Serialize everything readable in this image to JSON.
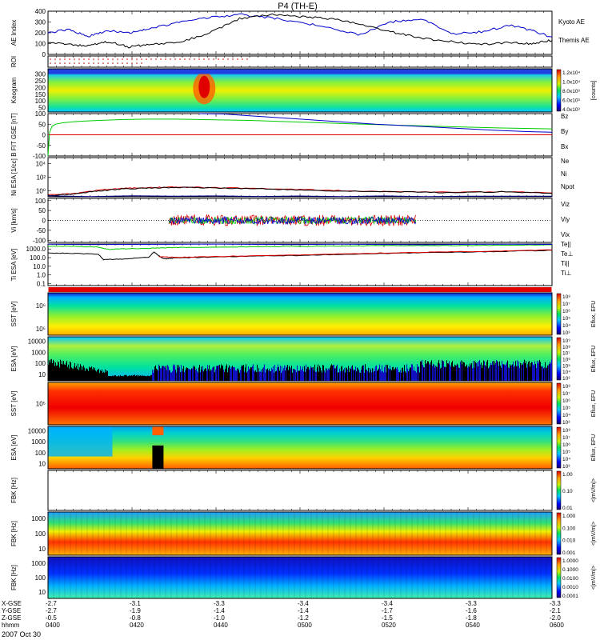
{
  "title": "P4 (TH-E)",
  "date_label": "2007 Oct 30",
  "colors": {
    "kyoto": "#0000cc",
    "themis": "#000000",
    "bz": "#dd0000",
    "by": "#00cc00",
    "bx": "#0000cc",
    "ne": "#dd0000",
    "ni": "#000000",
    "npot": "#000088",
    "telli": "#000000",
    "teperp": "#dd0000",
    "tipar": "#00cc00",
    "tiperp": "#0000cc"
  },
  "chart_data": [
    {
      "type": "line",
      "id": "ae",
      "ylabel": "AE Index",
      "yticks": [
        "0",
        "100",
        "200",
        "300",
        "400"
      ],
      "ylim": [
        0,
        400
      ],
      "series": [
        {
          "name": "Kyoto AE",
          "color_key": "kyoto",
          "x": [
            0,
            4,
            8,
            12,
            16,
            20,
            26,
            32,
            38,
            44,
            50,
            56,
            62,
            68,
            74,
            80,
            86,
            92,
            96,
            100
          ],
          "values": [
            200,
            230,
            165,
            220,
            200,
            240,
            295,
            340,
            370,
            340,
            300,
            240,
            180,
            300,
            330,
            190,
            210,
            270,
            220,
            160
          ]
        },
        {
          "name": "Themis AE",
          "color_key": "themis",
          "x": [
            0,
            4,
            8,
            12,
            16,
            20,
            26,
            32,
            38,
            44,
            50,
            56,
            62,
            68,
            74,
            80,
            86,
            92,
            96,
            100
          ],
          "values": [
            110,
            90,
            80,
            120,
            70,
            90,
            110,
            200,
            330,
            370,
            350,
            330,
            280,
            210,
            150,
            120,
            90,
            110,
            100,
            130
          ]
        }
      ]
    },
    {
      "type": "scatter",
      "id": "roi",
      "ylabel": "ROI"
    },
    {
      "type": "heatmap",
      "id": "keogram",
      "ylabel": "Keogram",
      "yticks": [
        "50",
        "100",
        "150",
        "200",
        "250",
        "300"
      ],
      "ylim": [
        25,
        300
      ],
      "colorbar_label": "[counts]",
      "colorbar_ticks": [
        "1.2x10⁴",
        "1.0x10⁴",
        "8.0x10³",
        "6.0x10³",
        "4.0x10³"
      ]
    },
    {
      "type": "line",
      "id": "bfield",
      "ylabel": "B FIT GSE [nT]",
      "yticks": [
        "-100",
        "-50",
        "0",
        "50",
        "100"
      ],
      "ylim": [
        -100,
        100
      ],
      "series": [
        {
          "name": "Bz",
          "color_key": "bz",
          "x": [
            0,
            100
          ],
          "values": [
            0,
            0
          ]
        },
        {
          "name": "By",
          "color_key": "by",
          "x": [
            0,
            0.3,
            0.8,
            1.5,
            3,
            6,
            10,
            15,
            20,
            25,
            30,
            40,
            50,
            60,
            70,
            80,
            90,
            100
          ],
          "values": [
            -100,
            10,
            40,
            50,
            57,
            63,
            68,
            72,
            74,
            74,
            72,
            68,
            60,
            52,
            45,
            38,
            32,
            28
          ]
        },
        {
          "name": "Bx",
          "color_key": "bx",
          "x": [
            30,
            35,
            40,
            45,
            50,
            55,
            60,
            65,
            70,
            75,
            80,
            85,
            90,
            95,
            100
          ],
          "values": [
            100,
            98,
            90,
            82,
            74,
            66,
            58,
            50,
            44,
            38,
            32,
            26,
            20,
            15,
            12
          ]
        }
      ]
    },
    {
      "type": "line",
      "id": "density",
      "ylabel": "Ni ESA [1/cc]",
      "yticks": [
        "10⁴",
        "10²",
        "10⁰"
      ],
      "ylim": [
        -1,
        5
      ],
      "series": [
        {
          "name": "Ne",
          "color_key": "ne",
          "x": [
            0,
            5,
            10,
            15,
            20,
            25,
            30,
            40,
            50,
            60,
            70,
            80,
            90,
            100
          ],
          "values": [
            -0.7,
            -0.5,
            0.0,
            0.3,
            0.4,
            0.5,
            0.45,
            0.3,
            0.1,
            -0.1,
            -0.2,
            -0.3,
            -0.2,
            -0.4
          ]
        },
        {
          "name": "Ni",
          "color_key": "ni",
          "x": [
            0,
            5,
            10,
            15,
            20,
            25,
            30,
            40,
            50,
            60,
            70,
            80,
            90,
            100
          ],
          "values": [
            -0.8,
            -0.6,
            -0.1,
            0.2,
            0.35,
            0.45,
            0.4,
            0.25,
            0.05,
            -0.15,
            -0.25,
            -0.35,
            -0.25,
            -0.5
          ]
        },
        {
          "name": "Npot",
          "color_key": "npot",
          "x": [
            0,
            100
          ],
          "values": [
            -0.9,
            -0.9
          ]
        }
      ]
    },
    {
      "type": "line",
      "id": "velocity",
      "ylabel": "Vi [km/s]",
      "yticks": [
        "-100",
        "-50",
        "0",
        "50",
        "100"
      ],
      "ylim": [
        -120,
        120
      ],
      "series": [
        {
          "name": "Viz",
          "color_key": "bz",
          "x": [
            24,
            73
          ],
          "values": [
            0,
            0
          ]
        },
        {
          "name": "Viy",
          "color_key": "by",
          "x": [
            24,
            73
          ],
          "values": [
            0,
            0
          ]
        },
        {
          "name": "Vix",
          "color_key": "bx",
          "x": [
            24,
            73
          ],
          "values": [
            0,
            0
          ]
        }
      ]
    },
    {
      "type": "line",
      "id": "temperature",
      "ylabel": "Ti ESA [eV]",
      "yticks": [
        "1000.0",
        "100.0",
        "10.0",
        "1.0",
        "0.1"
      ],
      "ylim": [
        -1.3,
        4
      ],
      "series": [
        {
          "name": "Te||",
          "color_key": "telli",
          "x": [
            0,
            5,
            10,
            11,
            15,
            20,
            21,
            22,
            23,
            25,
            30,
            40,
            50,
            60,
            70,
            80,
            90,
            100
          ],
          "values": [
            2.85,
            2.8,
            2.7,
            2.0,
            2.1,
            2.3,
            3.0,
            2.5,
            2.1,
            2.2,
            2.3,
            2.45,
            2.55,
            2.7,
            2.85,
            2.95,
            3.05,
            3.2
          ]
        },
        {
          "name": "Te⊥",
          "color_key": "teperp",
          "x": [
            22,
            25,
            30,
            40,
            50,
            60,
            70,
            80,
            90,
            100
          ],
          "values": [
            2.4,
            2.3,
            2.35,
            2.5,
            2.6,
            2.75,
            2.9,
            3.0,
            3.1,
            3.25
          ]
        },
        {
          "name": "Ti||",
          "color_key": "tipar",
          "x": [
            0,
            5,
            10,
            12,
            15,
            20,
            25,
            30,
            40,
            50,
            60,
            70,
            80,
            90,
            100
          ],
          "values": [
            3.7,
            3.7,
            3.6,
            3.3,
            3.4,
            3.45,
            3.55,
            3.6,
            3.65,
            3.7,
            3.75,
            3.8,
            3.8,
            3.85,
            3.9
          ]
        },
        {
          "name": "Ti⊥",
          "color_key": "tiperp",
          "x": [
            0,
            100
          ],
          "values": [
            3.95,
            3.95
          ]
        }
      ]
    },
    {
      "type": "heatmap",
      "id": "sst_e",
      "ylabel": "SST [eV]",
      "yticks": [
        "10⁶",
        "10⁵"
      ],
      "colorbar_label": "Eflux, EFU",
      "colorbar_ticks": [
        "10⁸",
        "10⁷",
        "10⁶",
        "10⁵",
        "10⁴",
        "10³"
      ]
    },
    {
      "type": "heatmap",
      "id": "esa_e",
      "ylabel": "ESA [eV]",
      "yticks": [
        "10000",
        "1000",
        "100",
        "10"
      ],
      "colorbar_label": "Eflux, EFU",
      "colorbar_ticks": [
        "10⁹",
        "10⁸",
        "10⁷",
        "10⁶",
        "10⁵",
        "10⁴",
        "10³"
      ]
    },
    {
      "type": "heatmap",
      "id": "sst_i",
      "ylabel": "SST [eV]",
      "yticks": [
        "10⁵"
      ],
      "colorbar_label": "Eflux, EFU",
      "colorbar_ticks": [
        "10⁸",
        "10⁷",
        "10⁶",
        "10⁵",
        "10⁴",
        "10³"
      ]
    },
    {
      "type": "heatmap",
      "id": "esa_i",
      "ylabel": "ESA [eV]",
      "yticks": [
        "10000",
        "1000",
        "100",
        "10"
      ],
      "colorbar_label": "Eflux, EFU",
      "colorbar_ticks": [
        "10⁸",
        "10⁷",
        "10⁶",
        "10⁵",
        "10⁴",
        "10³"
      ]
    },
    {
      "type": "heatmap",
      "id": "fbk_empty",
      "ylabel": "FBK [Hz]",
      "colorbar_label": "<|mV/m|>",
      "colorbar_ticks": [
        "1.00",
        "0.10",
        "0.01"
      ]
    },
    {
      "type": "heatmap",
      "id": "fbk_e12",
      "ylabel": "FBK [Hz]",
      "yticks": [
        "1000",
        "100",
        "10"
      ],
      "colorbar_label": "<|mV/m|>",
      "colorbar_ticks": [
        "1.000",
        "0.100",
        "0.010",
        "0.001"
      ]
    },
    {
      "type": "heatmap",
      "id": "fbk_scm",
      "ylabel": "FBK [Hz]",
      "yticks": [
        "1000",
        "100",
        "10"
      ],
      "colorbar_label": "<|mV/m|>",
      "colorbar_ticks": [
        "1.0000",
        "0.1000",
        "0.0100",
        "0.0010",
        "0.0001"
      ]
    }
  ],
  "xaxis": {
    "row_labels": [
      "X-GSE",
      "Y-GSE",
      "Z-GSE",
      "hhmm"
    ],
    "columns": [
      {
        "values": [
          "-2.7",
          "-2.7",
          "-0.5",
          "0400"
        ]
      },
      {
        "values": [
          "-3.1",
          "-1.9",
          "-0.8",
          "0420"
        ]
      },
      {
        "values": [
          "-3.3",
          "-1.4",
          "-1.0",
          "0440"
        ]
      },
      {
        "values": [
          "-3.4",
          "-1.4",
          "-1.2",
          "0500"
        ]
      },
      {
        "values": [
          "-3.4",
          "-1.7",
          "-1.5",
          "0520"
        ]
      },
      {
        "values": [
          "-3.3",
          "-1.6",
          "-1.8",
          "0540"
        ]
      },
      {
        "values": [
          "-3.3",
          "-2.1",
          "-2.0",
          "0600"
        ]
      }
    ]
  }
}
